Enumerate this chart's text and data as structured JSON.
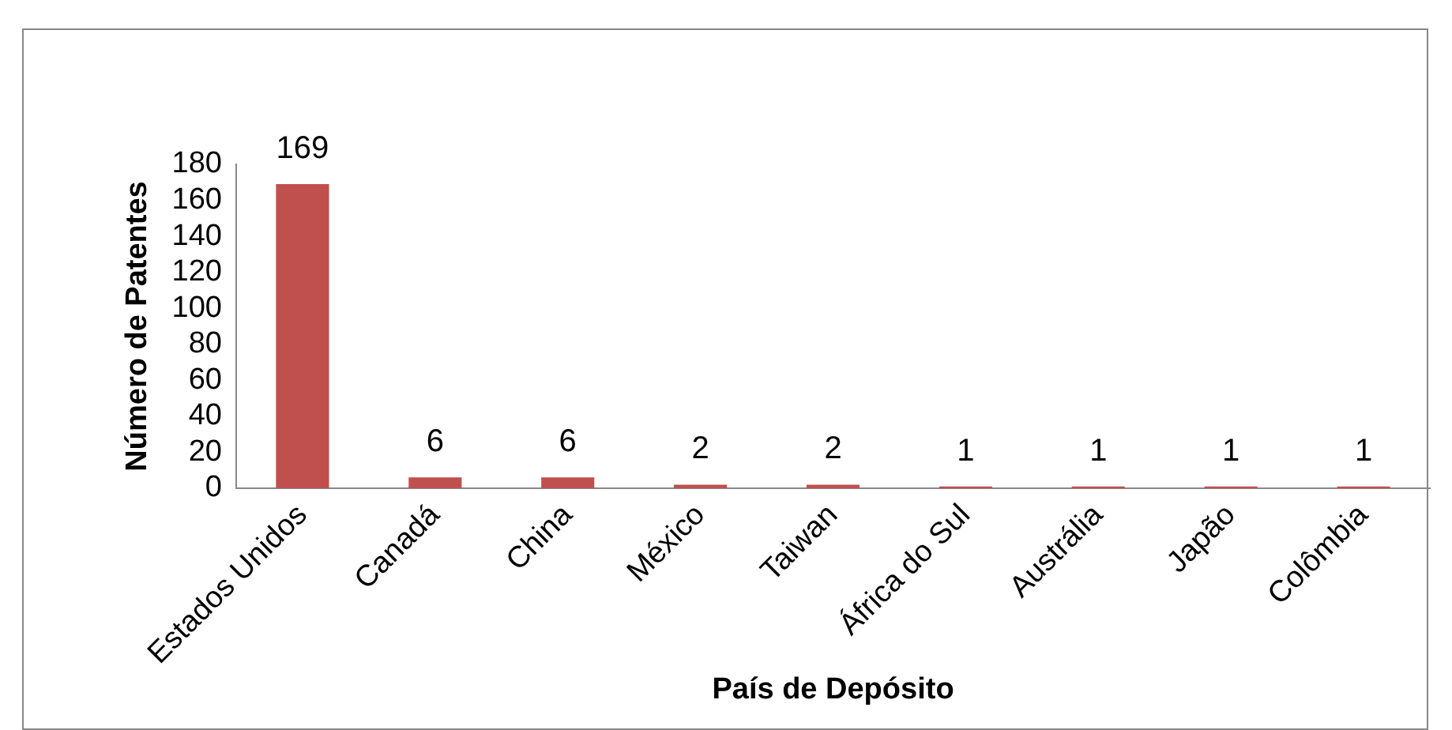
{
  "chart_data": {
    "type": "bar",
    "xlabel": "País de Depósito",
    "ylabel": "Número de Patentes",
    "categories": [
      "Estados Unidos",
      "Canadá",
      "China",
      "México",
      "Taiwan",
      "África do Sul",
      "Austrália",
      "Japão",
      "Colômbia"
    ],
    "values": [
      169,
      6,
      6,
      2,
      2,
      1,
      1,
      1,
      1
    ],
    "color": "#c0504d",
    "ylim": [
      0,
      180
    ],
    "yticks": [
      0,
      20,
      40,
      60,
      80,
      100,
      120,
      140,
      160,
      180
    ],
    "grid": false,
    "legend": false,
    "data_labels": true
  }
}
